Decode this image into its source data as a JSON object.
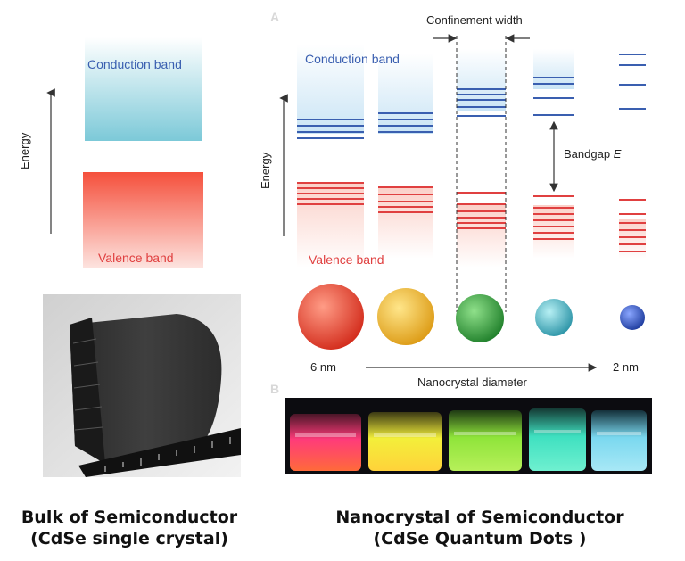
{
  "bulk": {
    "conduction_label": "Conduction band",
    "valence_label": "Valence band",
    "energy_label": "Energy",
    "caption_line1": "Bulk of Semiconductor",
    "caption_line2": "(CdSe single crystal)"
  },
  "nano": {
    "panel_a": "A",
    "panel_b": "B",
    "confinement_label": "Confinement width",
    "conduction_label": "Conduction band",
    "valence_label": "Valence band",
    "energy_label": "Energy",
    "bandgap_label": "Bandgap",
    "bandgap_symbol": "E",
    "size_large": "6 nm",
    "size_small": "2 nm",
    "diameter_label": "Nanocrystal diameter",
    "caption_line1": "Nanocrystal of Semiconductor",
    "caption_line2": "(CdSe Quantum Dots )",
    "dot_colors": [
      "#e23b2a",
      "#e8b224",
      "#2f9a3a",
      "#34a9b8",
      "#2a4fb0"
    ],
    "vial_colors": [
      "#ff3b7a",
      "#f3ef3a",
      "#8fe43a",
      "#3fe0c0",
      "#7ad8ef"
    ]
  },
  "colors": {
    "conduction": "#3a5fb0",
    "valence": "#e04040"
  }
}
